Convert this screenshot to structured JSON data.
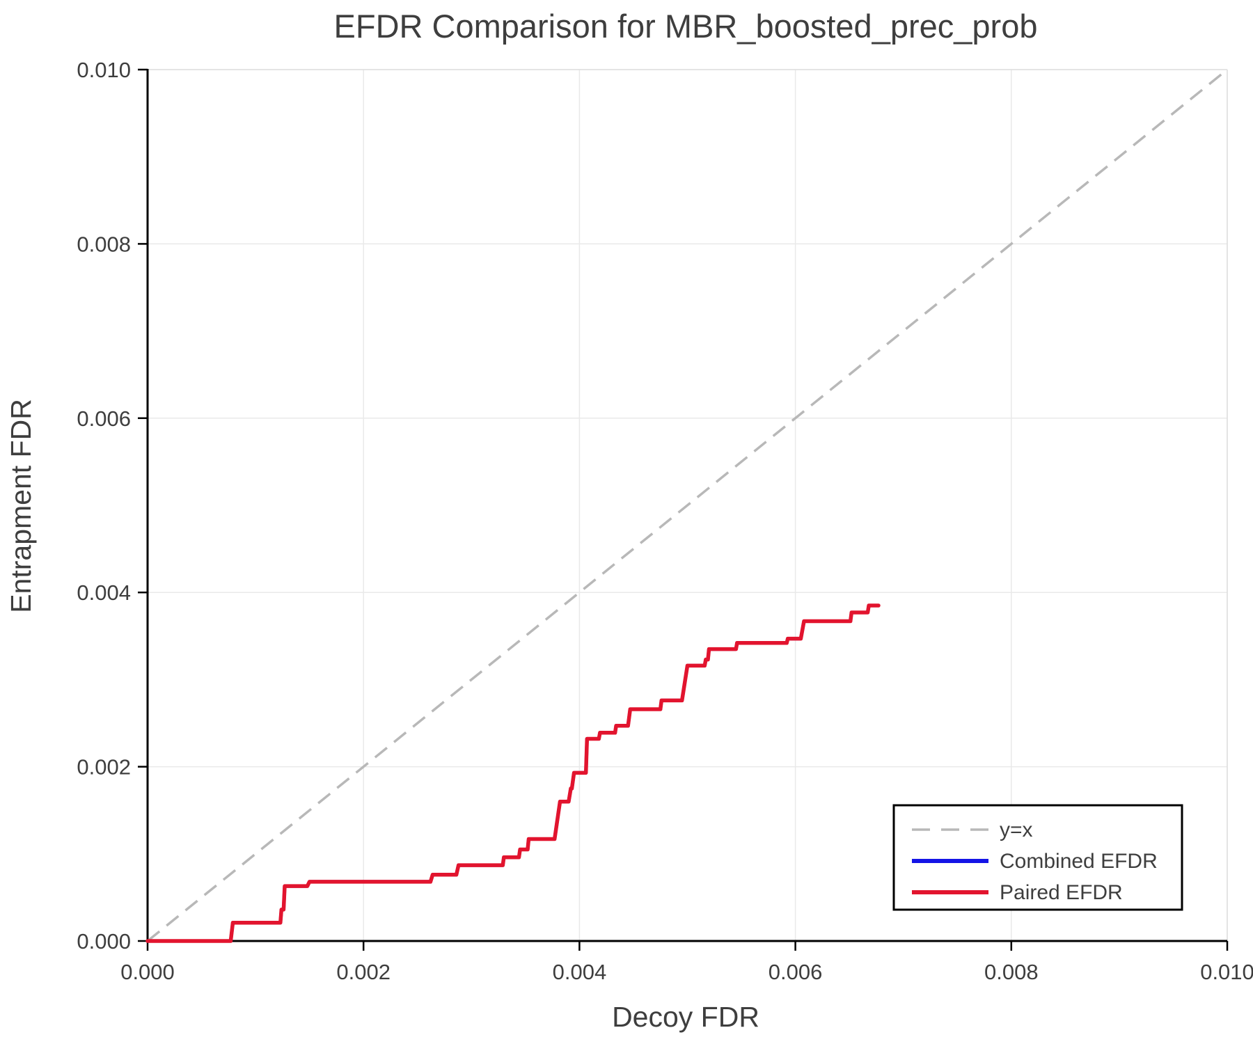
{
  "colors": {
    "paired_red": "#e2142e",
    "combined_blue": "#1414e6",
    "identity_gray": "#b8b8b8",
    "grid": "#e9e9e9",
    "spine_light": "#dedede",
    "axis_black": "#000000",
    "title_text": "#3c3c3c",
    "tick_text": "#4d4d4d",
    "legend_border": "#000000",
    "legend_bg": "#ffffff"
  },
  "chart_data": {
    "type": "line",
    "title": "EFDR Comparison for MBR_boosted_prec_prob",
    "xlabel": "Decoy FDR",
    "ylabel": "Entrapment FDR",
    "xlim": [
      0.0,
      0.01
    ],
    "ylim": [
      0.0,
      0.01
    ],
    "grid": true,
    "xtick_values": [
      0.0,
      0.002,
      0.004,
      0.006,
      0.008,
      0.01
    ],
    "xtick_labels": [
      "0.000",
      "0.002",
      "0.004",
      "0.006",
      "0.008",
      "0.010"
    ],
    "ytick_values": [
      0.0,
      0.002,
      0.004,
      0.006,
      0.008,
      0.01
    ],
    "ytick_labels": [
      "0.000",
      "0.002",
      "0.004",
      "0.006",
      "0.008",
      "0.010"
    ],
    "legend": {
      "position": "lower right"
    },
    "series": [
      {
        "name": "y=x",
        "style": "dashed",
        "color": "#b8b8b8",
        "points": [
          [
            0.0,
            0.0
          ],
          [
            0.01,
            0.01
          ]
        ]
      },
      {
        "name": "Combined EFDR",
        "style": "solid",
        "color": "#1414e6",
        "note": "overlaps Paired EFDR curve",
        "points": [
          [
            0.0,
            0.0
          ],
          [
            0.00077,
            0.0
          ],
          [
            0.00079,
            0.00021
          ],
          [
            0.00123,
            0.00021
          ],
          [
            0.00124,
            0.00036
          ],
          [
            0.00126,
            0.00036
          ],
          [
            0.00127,
            0.00063
          ],
          [
            0.00148,
            0.00063
          ],
          [
            0.0015,
            0.00068
          ],
          [
            0.00262,
            0.00068
          ],
          [
            0.00264,
            0.00076
          ],
          [
            0.00286,
            0.00076
          ],
          [
            0.00288,
            0.00087
          ],
          [
            0.00329,
            0.00087
          ],
          [
            0.0033,
            0.00096
          ],
          [
            0.00344,
            0.00096
          ],
          [
            0.00345,
            0.00105
          ],
          [
            0.00352,
            0.00105
          ],
          [
            0.00353,
            0.00117
          ],
          [
            0.00377,
            0.00117
          ],
          [
            0.00382,
            0.0016
          ],
          [
            0.0039,
            0.0016
          ],
          [
            0.00392,
            0.00175
          ],
          [
            0.00393,
            0.00175
          ],
          [
            0.00395,
            0.00193
          ],
          [
            0.00406,
            0.00193
          ],
          [
            0.00407,
            0.00232
          ],
          [
            0.00418,
            0.00232
          ],
          [
            0.00419,
            0.00239
          ],
          [
            0.00433,
            0.00239
          ],
          [
            0.00434,
            0.00247
          ],
          [
            0.00445,
            0.00247
          ],
          [
            0.00447,
            0.00266
          ],
          [
            0.00475,
            0.00266
          ],
          [
            0.00476,
            0.00276
          ],
          [
            0.00495,
            0.00276
          ],
          [
            0.005,
            0.00316
          ],
          [
            0.00516,
            0.00316
          ],
          [
            0.00517,
            0.00323
          ],
          [
            0.00519,
            0.00323
          ],
          [
            0.0052,
            0.00335
          ],
          [
            0.00545,
            0.00335
          ],
          [
            0.00546,
            0.00342
          ],
          [
            0.00592,
            0.00342
          ],
          [
            0.00593,
            0.00347
          ],
          [
            0.00605,
            0.00347
          ],
          [
            0.00608,
            0.00367
          ],
          [
            0.00651,
            0.00367
          ],
          [
            0.00652,
            0.00377
          ],
          [
            0.00667,
            0.00377
          ],
          [
            0.00668,
            0.00385
          ],
          [
            0.00677,
            0.00385
          ]
        ]
      },
      {
        "name": "Paired EFDR",
        "style": "solid",
        "color": "#e2142e",
        "points": [
          [
            0.0,
            0.0
          ],
          [
            0.00077,
            0.0
          ],
          [
            0.00079,
            0.00021
          ],
          [
            0.00123,
            0.00021
          ],
          [
            0.00124,
            0.00036
          ],
          [
            0.00126,
            0.00036
          ],
          [
            0.00127,
            0.00063
          ],
          [
            0.00148,
            0.00063
          ],
          [
            0.0015,
            0.00068
          ],
          [
            0.00262,
            0.00068
          ],
          [
            0.00264,
            0.00076
          ],
          [
            0.00286,
            0.00076
          ],
          [
            0.00288,
            0.00087
          ],
          [
            0.00329,
            0.00087
          ],
          [
            0.0033,
            0.00096
          ],
          [
            0.00344,
            0.00096
          ],
          [
            0.00345,
            0.00105
          ],
          [
            0.00352,
            0.00105
          ],
          [
            0.00353,
            0.00117
          ],
          [
            0.00377,
            0.00117
          ],
          [
            0.00382,
            0.0016
          ],
          [
            0.0039,
            0.0016
          ],
          [
            0.00392,
            0.00175
          ],
          [
            0.00393,
            0.00175
          ],
          [
            0.00395,
            0.00193
          ],
          [
            0.00406,
            0.00193
          ],
          [
            0.00407,
            0.00232
          ],
          [
            0.00418,
            0.00232
          ],
          [
            0.00419,
            0.00239
          ],
          [
            0.00433,
            0.00239
          ],
          [
            0.00434,
            0.00247
          ],
          [
            0.00445,
            0.00247
          ],
          [
            0.00447,
            0.00266
          ],
          [
            0.00475,
            0.00266
          ],
          [
            0.00476,
            0.00276
          ],
          [
            0.00495,
            0.00276
          ],
          [
            0.005,
            0.00316
          ],
          [
            0.00516,
            0.00316
          ],
          [
            0.00517,
            0.00323
          ],
          [
            0.00519,
            0.00323
          ],
          [
            0.0052,
            0.00335
          ],
          [
            0.00545,
            0.00335
          ],
          [
            0.00546,
            0.00342
          ],
          [
            0.00592,
            0.00342
          ],
          [
            0.00593,
            0.00347
          ],
          [
            0.00605,
            0.00347
          ],
          [
            0.00608,
            0.00367
          ],
          [
            0.00651,
            0.00367
          ],
          [
            0.00652,
            0.00377
          ],
          [
            0.00667,
            0.00377
          ],
          [
            0.00668,
            0.00385
          ],
          [
            0.00677,
            0.00385
          ]
        ]
      }
    ]
  }
}
